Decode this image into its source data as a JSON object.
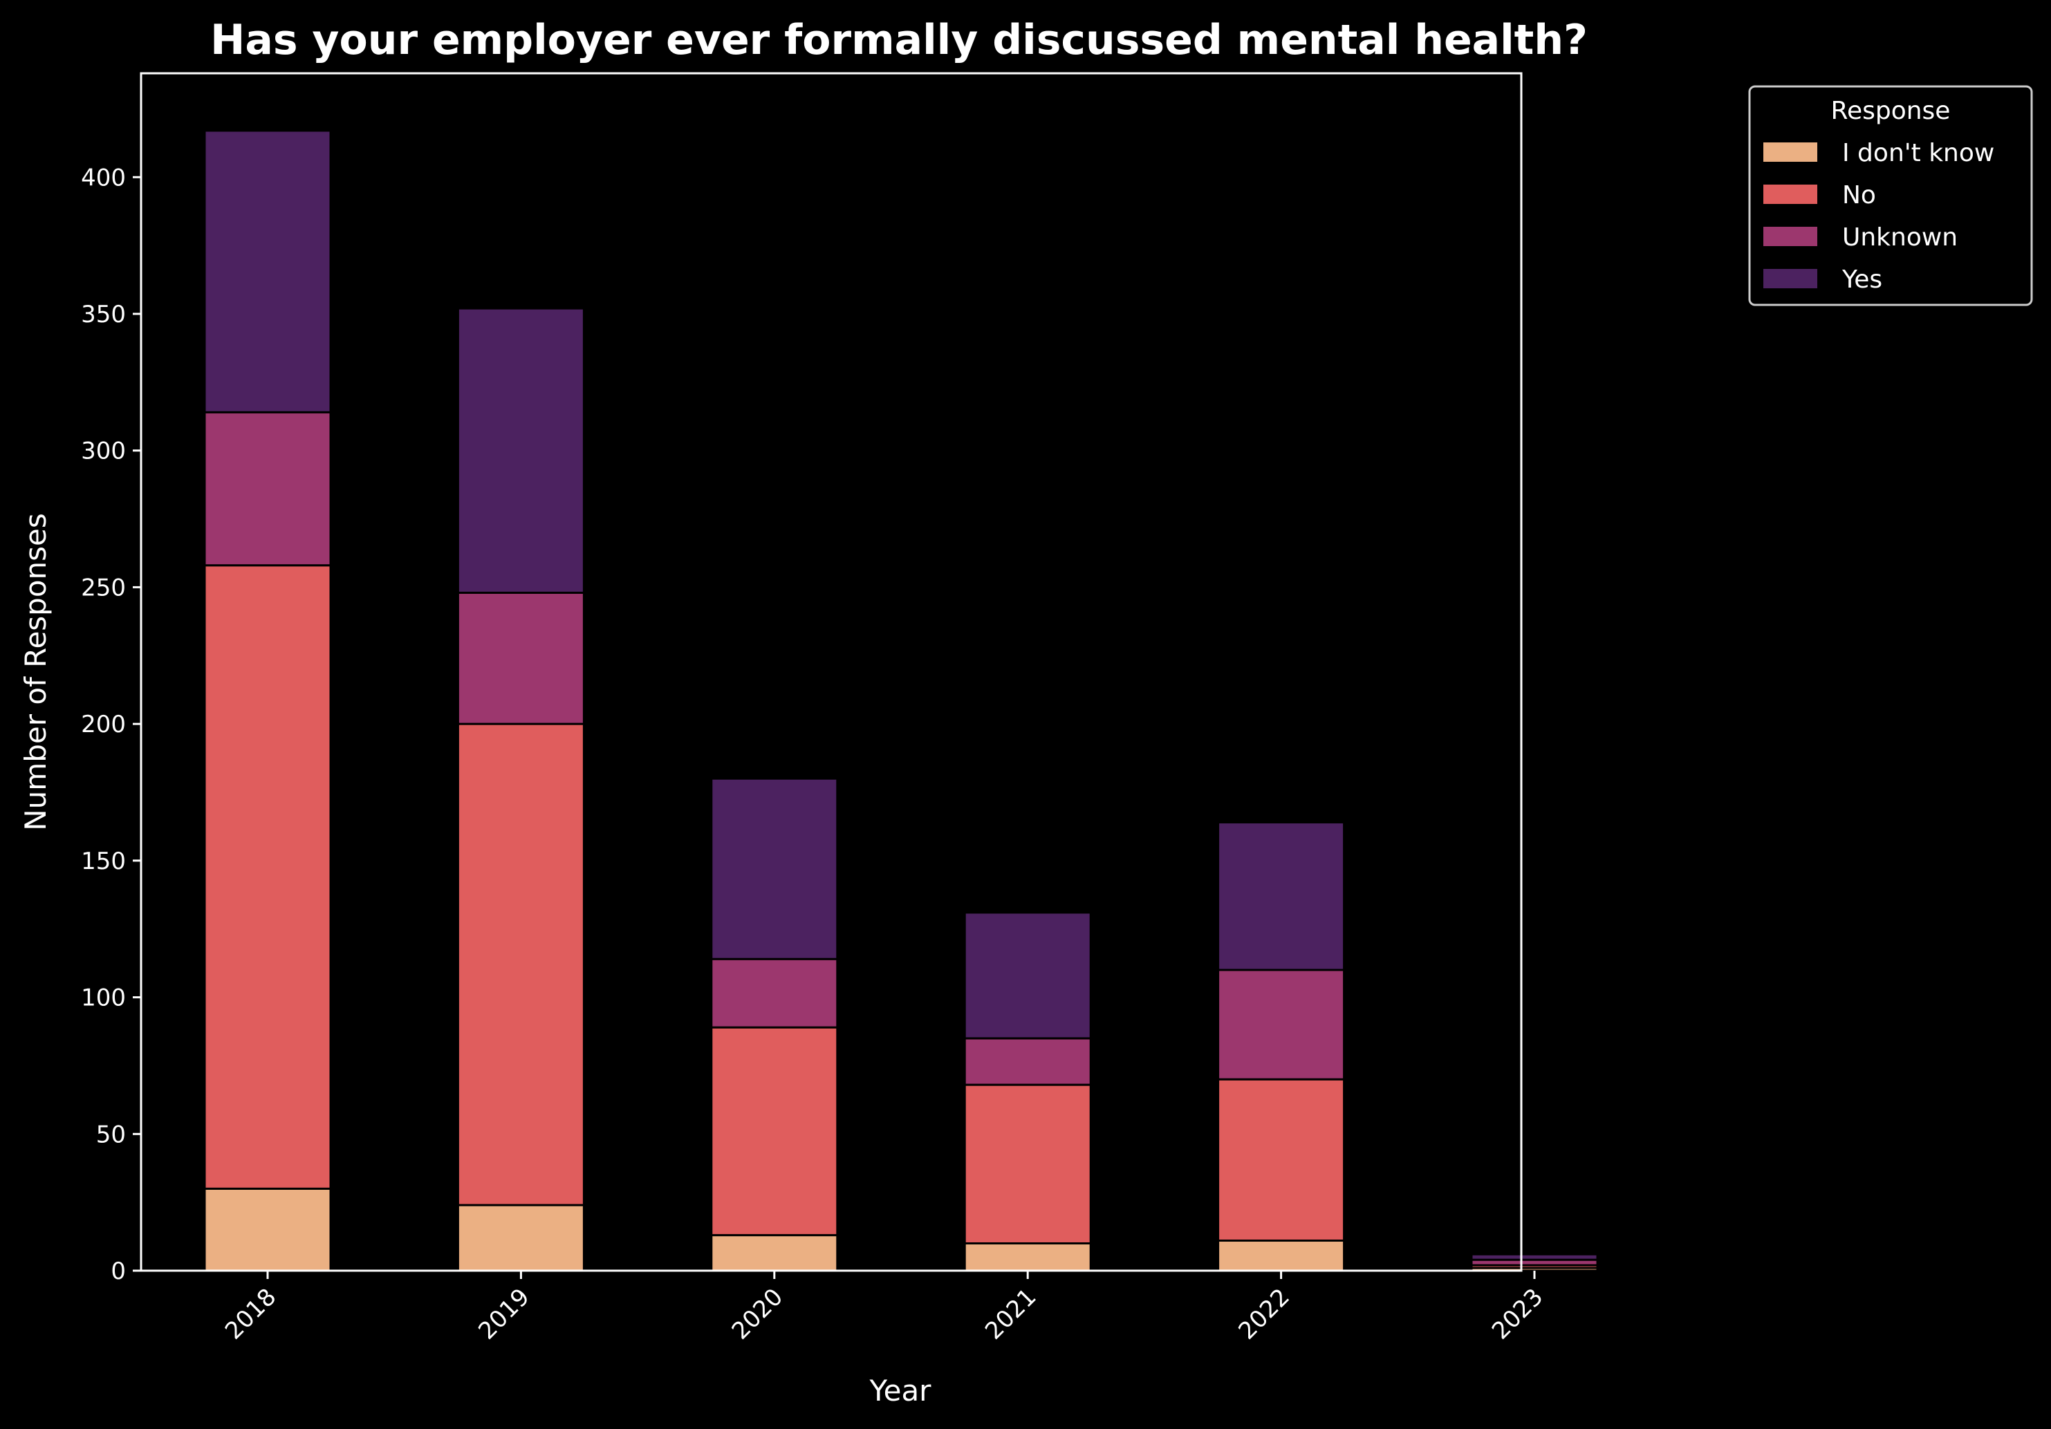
{
  "chart_data": {
    "type": "bar",
    "stacked": true,
    "title": "Has your employer ever formally discussed mental health?",
    "xlabel": "Year",
    "ylabel": "Number of Responses",
    "categories": [
      "2018",
      "2019",
      "2020",
      "2021",
      "2022",
      "2023"
    ],
    "ylim": [
      0,
      438
    ],
    "yticks": [
      0,
      50,
      100,
      150,
      200,
      250,
      300,
      350,
      400
    ],
    "grid": false,
    "legend": {
      "title": "Response",
      "position": "outside-top-right"
    },
    "series": [
      {
        "name": "I don't know",
        "color": "#ebb083",
        "values": [
          30,
          24,
          13,
          10,
          11,
          1
        ]
      },
      {
        "name": "No",
        "color": "#e05d5d",
        "values": [
          228,
          176,
          76,
          58,
          59,
          1
        ]
      },
      {
        "name": "Unknown",
        "color": "#9c376e",
        "values": [
          56,
          48,
          25,
          17,
          40,
          2
        ]
      },
      {
        "name": "Yes",
        "color": "#4c2260",
        "values": [
          103,
          104,
          66,
          46,
          54,
          2
        ]
      }
    ]
  }
}
